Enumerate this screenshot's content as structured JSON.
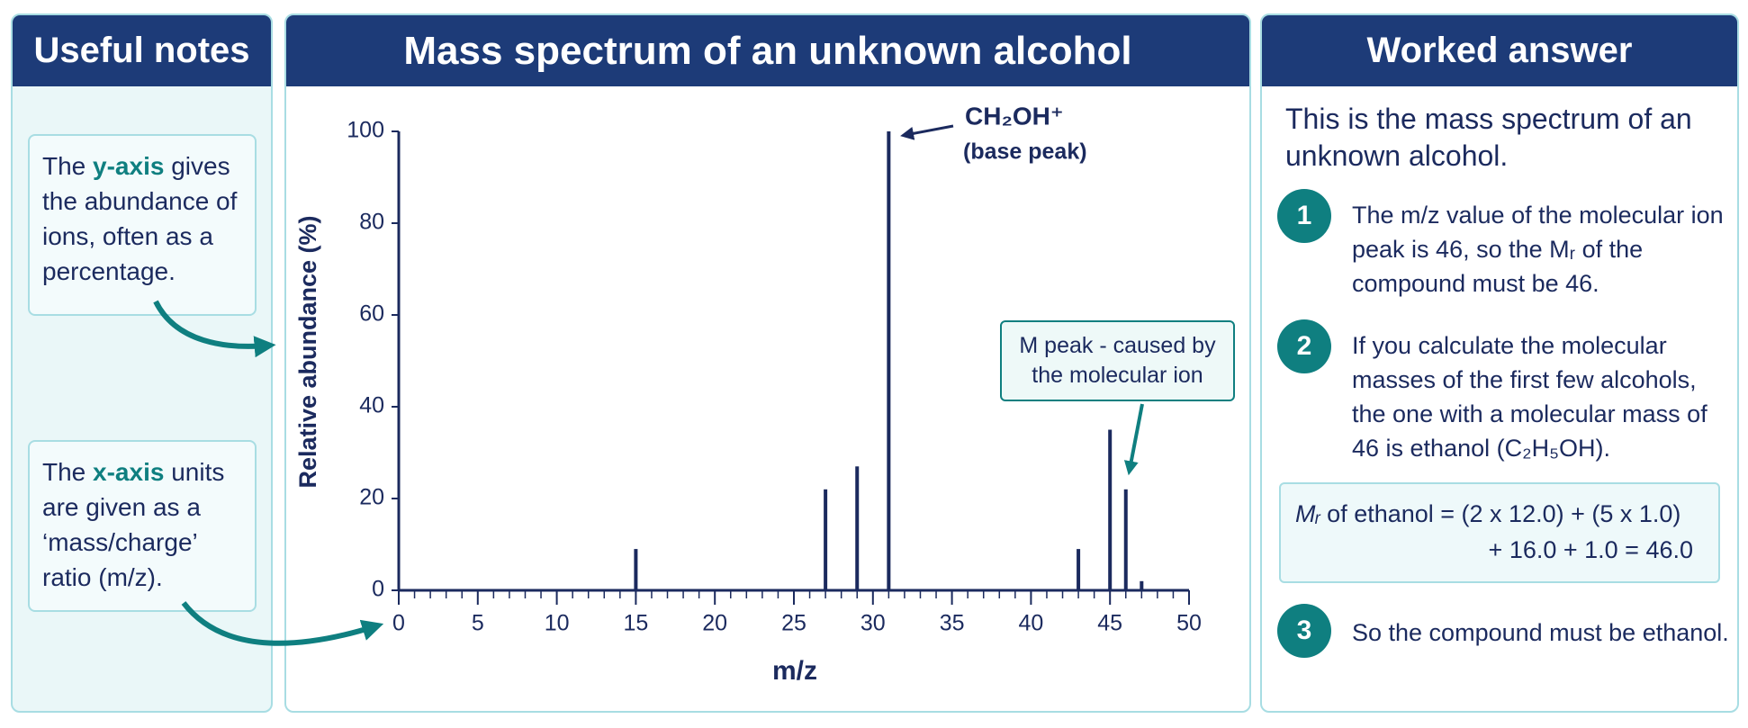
{
  "notes_panel": {
    "title": "Useful notes",
    "notes": [
      {
        "parts": [
          "The ",
          "y-axis",
          " gives the abundance of ions, often as a percentage."
        ]
      },
      {
        "parts": [
          "The ",
          "x-axis",
          " units are given as a ‘mass/charge’ ratio (m/z)."
        ]
      }
    ]
  },
  "chart_data": {
    "type": "bar",
    "title": "Mass spectrum of an unknown alcohol",
    "x": [
      15,
      27,
      29,
      31,
      43,
      45,
      46,
      47
    ],
    "values": [
      9,
      22,
      27,
      100,
      9,
      35,
      22,
      2
    ],
    "color": "#1b2a5e",
    "xlim": [
      0,
      50
    ],
    "ylim": [
      0,
      100
    ],
    "xticks": [
      0,
      5,
      10,
      15,
      20,
      25,
      30,
      35,
      40,
      45,
      50
    ],
    "xminorticks": [
      0,
      1,
      2,
      3,
      4,
      5,
      6,
      7,
      8,
      9,
      10,
      11,
      12,
      13,
      14,
      15,
      16,
      17,
      18,
      19,
      20,
      21,
      22,
      23,
      24,
      25,
      26,
      27,
      28,
      29,
      30,
      31,
      32,
      33,
      34,
      35,
      36,
      37,
      38,
      39,
      40,
      41,
      42,
      43,
      44,
      45,
      46,
      47,
      48,
      49,
      50
    ],
    "yticks": [
      0,
      20,
      40,
      60,
      80,
      100
    ],
    "xlabel": "m/z",
    "ylabel": "Relative abundance (%)",
    "base_peak_label": [
      "CH₂OH⁺",
      "(base peak)"
    ],
    "molecular_ion_label": "M peak - caused by the molecular ion"
  },
  "answer_panel": {
    "title": "Worked answer",
    "intro": "This is the mass spectrum of an unknown alcohol.",
    "steps": [
      {
        "number": "1",
        "text": "The m/z value of the molecular ion peak is 46, so the Mᵣ of the compound must be 46."
      },
      {
        "number": "2",
        "text": "If you calculate the molecular masses of the first few alcohols, the one with a molecular mass of 46 is ethanol (C₂H₅OH)."
      },
      {
        "number": "3",
        "text": "So the compound must be ethanol."
      }
    ],
    "equation": {
      "symbol": "Mᵣ",
      "line1": "of ethanol = (2 x 12.0) + (5 x 1.0)",
      "line2": "+ 16.0 + 1.0 = 46.0"
    }
  }
}
